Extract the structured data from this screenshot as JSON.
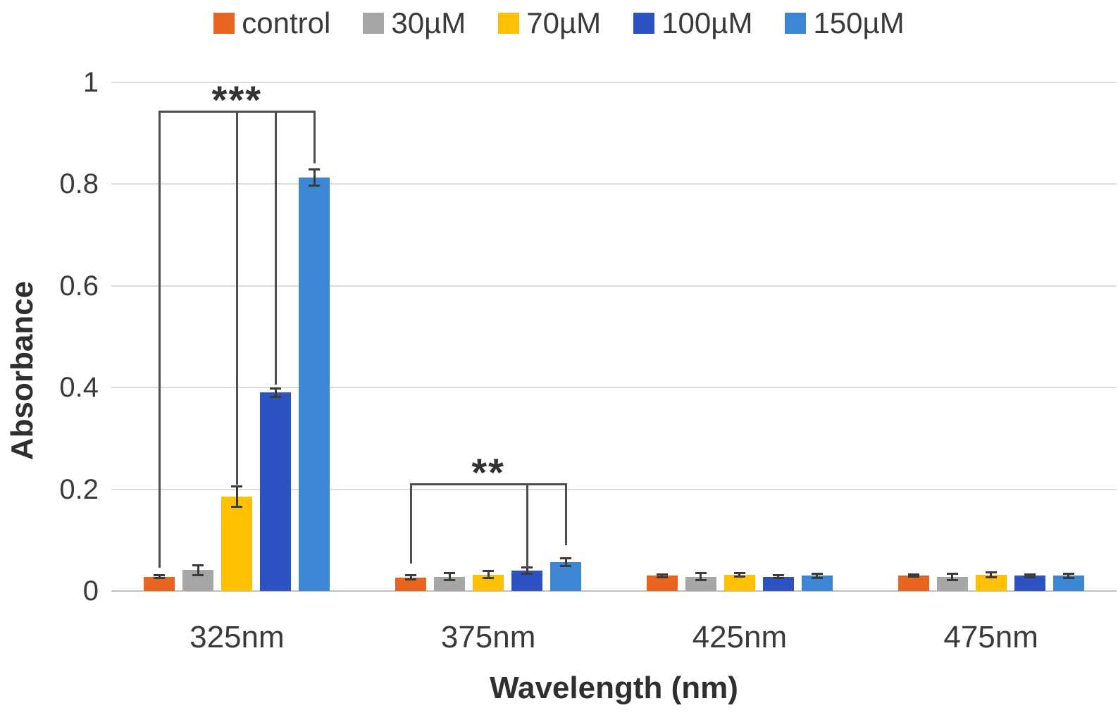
{
  "figure": {
    "background": "#FFFFFF"
  },
  "chart_data": {
    "type": "bar",
    "title": "",
    "xlabel": "Wavelength (nm)",
    "ylabel": "Absorbance",
    "categories": [
      "325nm",
      "375nm",
      "425nm",
      "475nm"
    ],
    "series": [
      {
        "name": "control",
        "color": "#E8651F",
        "values": [
          0.028,
          0.027,
          0.03,
          0.03
        ],
        "errors": [
          0.003,
          0.004,
          0.003,
          0.002
        ]
      },
      {
        "name": "30µM",
        "color": "#A6A6A6",
        "values": [
          0.041,
          0.028,
          0.028,
          0.028
        ],
        "errors": [
          0.01,
          0.007,
          0.007,
          0.006
        ]
      },
      {
        "name": "70µM",
        "color": "#FFC002",
        "values": [
          0.185,
          0.032,
          0.032,
          0.032
        ],
        "errors": [
          0.02,
          0.007,
          0.004,
          0.005
        ]
      },
      {
        "name": "100µM",
        "color": "#2D53C3",
        "values": [
          0.39,
          0.04,
          0.028,
          0.03
        ],
        "errors": [
          0.008,
          0.006,
          0.003,
          0.003
        ]
      },
      {
        "name": "150µM",
        "color": "#3C86D3",
        "values": [
          0.813,
          0.057,
          0.03,
          0.03
        ],
        "errors": [
          0.016,
          0.008,
          0.004,
          0.004
        ]
      }
    ],
    "ylim": [
      0,
      1
    ],
    "ytick_values": [
      0,
      0.2,
      0.4,
      0.6,
      0.8,
      1
    ],
    "ytick_labels": [
      "0",
      "0.2",
      "0.4",
      "0.6",
      "0.8",
      "1"
    ],
    "grid": true,
    "legend_position": "top",
    "annotations": [
      {
        "label": "***",
        "group": 0,
        "line_y": 0.943,
        "drops": [
          {
            "series": 0,
            "to": 0.046
          },
          {
            "series": 2,
            "to": 0.209
          },
          {
            "series": 3,
            "to": 0.406
          },
          {
            "series": 4,
            "to": 0.841
          }
        ]
      },
      {
        "label": "**",
        "group": 1,
        "line_y": 0.21,
        "drops": [
          {
            "series": 0,
            "to": 0.054
          },
          {
            "series": 3,
            "to": 0.046
          },
          {
            "series": 4,
            "to": 0.09
          }
        ]
      }
    ],
    "colors": {
      "gridline": "#DCDCDC",
      "baseline": "#C0C0C0",
      "error_bar": "#3A3A3A",
      "annotation": "#4D4D4D",
      "axis_text": "#3A3A3A"
    }
  }
}
